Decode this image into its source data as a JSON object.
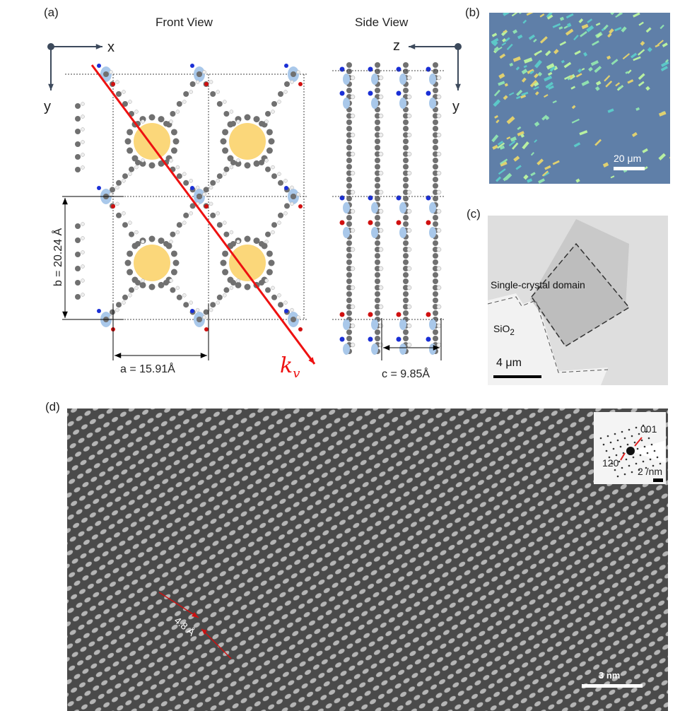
{
  "panels": {
    "a": {
      "label": "(a)",
      "front_title": "Front View",
      "side_title": "Side View",
      "front_axes": {
        "x": "x",
        "y": "y"
      },
      "side_axes": {
        "z": "z",
        "y": "y"
      },
      "dim_b": "b = 20.24 Å",
      "dim_a": "a = 15.91Å",
      "dim_c": "c = 9.85Å",
      "vector_label": "k",
      "vector_sub": "v",
      "vector_color": "#ee1111"
    },
    "b": {
      "label": "(b)",
      "scale": "20 μm"
    },
    "c": {
      "label": "(c)",
      "domain": "Single-crystal domain",
      "substrate": "SiO",
      "substrate_sub": "2",
      "scale": "4 μm"
    },
    "d": {
      "label": "(d)",
      "inset_spot1": "001",
      "inset_spot2": "120",
      "inset_scale": "2 /nm",
      "spacing": "4.8 Å",
      "scale": "3 nm",
      "arrow_color": "#cc1111"
    }
  },
  "colors": {
    "carbon": "#707070",
    "hydrogen": "#eeeeee",
    "nitrogen": "#1a2fd6",
    "oxygen": "#d01010",
    "metal": "#a9c8ea",
    "ring": "#fbd77a"
  }
}
